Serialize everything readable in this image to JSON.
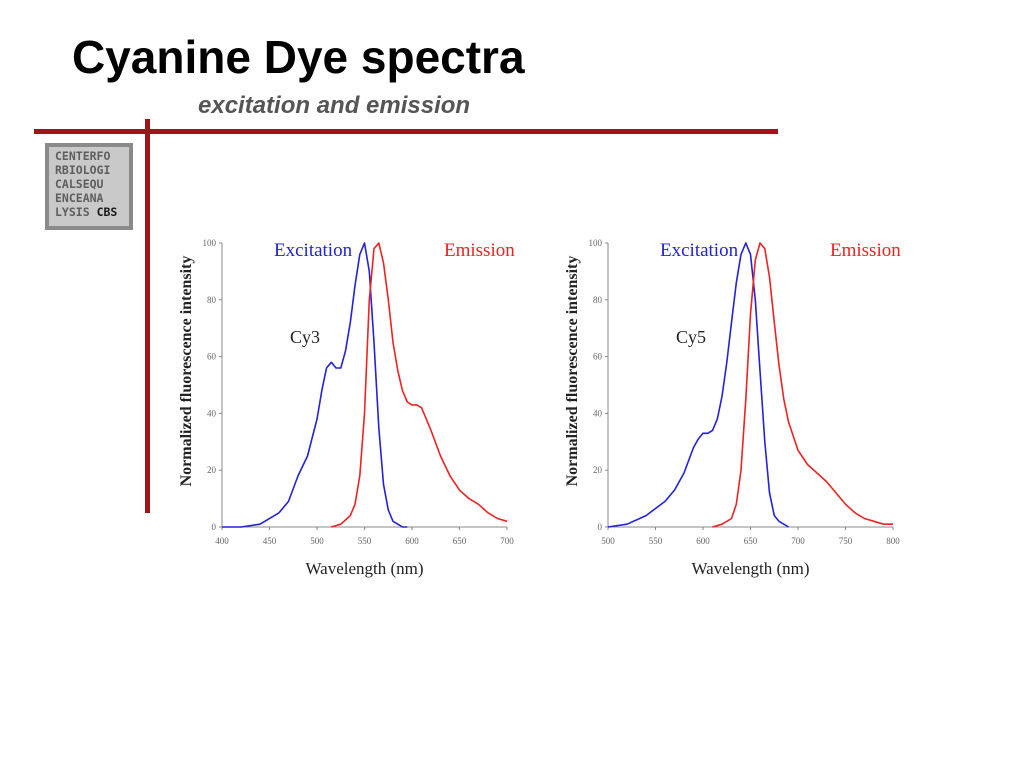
{
  "slide": {
    "title": "Cyanine Dye spectra",
    "subtitle": "excitation and emission",
    "accent_color": "#a0141c"
  },
  "logo": {
    "lines": [
      "CENTERFO",
      "RBIOLOGI",
      "CALSEQU",
      "ENCEANA",
      "LYSIS"
    ],
    "emphasis": "CBS"
  },
  "chart_data": [
    {
      "type": "line",
      "annotation": "Cy3",
      "xlabel": "Wavelength (nm)",
      "ylabel": "Normalized fluorescence intensity",
      "xlim": [
        400,
        700
      ],
      "ylim": [
        0,
        100
      ],
      "xticks": [
        400,
        450,
        500,
        550,
        600,
        650,
        700
      ],
      "yticks": [
        0,
        20,
        40,
        60,
        80,
        100
      ],
      "legend_placement": "top",
      "series": [
        {
          "name": "Excitation",
          "color": "#2222dd",
          "x": [
            400,
            420,
            440,
            460,
            470,
            480,
            490,
            500,
            505,
            510,
            515,
            520,
            525,
            530,
            535,
            540,
            545,
            550,
            555,
            560,
            565,
            570,
            575,
            580,
            585,
            590,
            595
          ],
          "y": [
            0,
            0,
            1,
            5,
            9,
            18,
            25,
            38,
            48,
            56,
            58,
            56,
            56,
            62,
            72,
            85,
            96,
            100,
            90,
            65,
            35,
            15,
            6,
            2,
            1,
            0,
            0
          ]
        },
        {
          "name": "Emission",
          "color": "#ee2222",
          "x": [
            515,
            525,
            535,
            540,
            545,
            550,
            555,
            560,
            565,
            570,
            575,
            580,
            585,
            590,
            595,
            600,
            605,
            610,
            615,
            620,
            630,
            640,
            650,
            660,
            670,
            680,
            690,
            700
          ],
          "y": [
            0,
            1,
            4,
            8,
            18,
            40,
            80,
            98,
            100,
            93,
            80,
            65,
            55,
            48,
            44,
            43,
            43,
            42,
            38,
            34,
            25,
            18,
            13,
            10,
            8,
            5,
            3,
            2
          ]
        }
      ]
    },
    {
      "type": "line",
      "annotation": "Cy5",
      "xlabel": "Wavelength (nm)",
      "ylabel": "Normalized fluorescence intensity",
      "xlim": [
        500,
        800
      ],
      "ylim": [
        0,
        100
      ],
      "xticks": [
        500,
        550,
        600,
        650,
        700,
        750,
        800
      ],
      "yticks": [
        0,
        20,
        40,
        60,
        80,
        100
      ],
      "legend_placement": "top",
      "series": [
        {
          "name": "Excitation",
          "color": "#2222dd",
          "x": [
            500,
            520,
            540,
            560,
            570,
            580,
            590,
            595,
            600,
            605,
            610,
            615,
            620,
            625,
            630,
            635,
            640,
            645,
            650,
            655,
            660,
            665,
            670,
            675,
            680,
            690
          ],
          "y": [
            0,
            1,
            4,
            9,
            13,
            19,
            28,
            31,
            33,
            33,
            34,
            38,
            46,
            58,
            72,
            86,
            96,
            100,
            96,
            80,
            55,
            30,
            12,
            4,
            2,
            0
          ]
        },
        {
          "name": "Emission",
          "color": "#ee2222",
          "x": [
            610,
            620,
            630,
            635,
            640,
            645,
            650,
            655,
            660,
            665,
            670,
            675,
            680,
            685,
            690,
            700,
            710,
            720,
            730,
            740,
            750,
            760,
            770,
            780,
            790,
            800
          ],
          "y": [
            0,
            1,
            3,
            8,
            20,
            45,
            75,
            94,
            100,
            98,
            88,
            72,
            57,
            45,
            37,
            27,
            22,
            19,
            16,
            12,
            8,
            5,
            3,
            2,
            1,
            1
          ]
        }
      ]
    }
  ]
}
